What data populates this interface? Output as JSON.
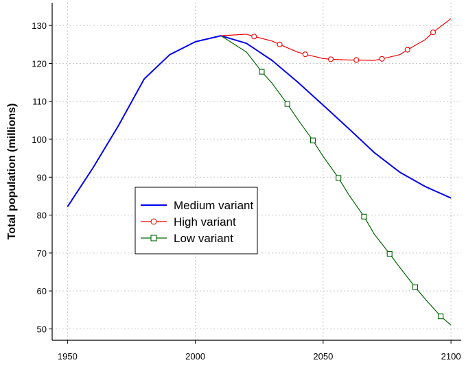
{
  "chart_data": {
    "type": "line",
    "title": "",
    "xlabel": "",
    "ylabel": "Total population (millions)",
    "xlim": [
      1944,
      2104
    ],
    "ylim": [
      47,
      136
    ],
    "xticks": [
      1950,
      2000,
      2050,
      2100
    ],
    "yticks": [
      50,
      60,
      70,
      80,
      90,
      100,
      110,
      120,
      130
    ],
    "grid": true,
    "legend": "center-left",
    "series": [
      {
        "name": "Medium variant",
        "color": "#0000ee",
        "marker": "none",
        "x": [
          1950,
          1960,
          1970,
          1980,
          1990,
          2000,
          2010,
          2020,
          2030,
          2040,
          2050,
          2060,
          2070,
          2080,
          2090,
          2100
        ],
        "y": [
          82.2,
          92.5,
          103.7,
          115.9,
          122.3,
          125.7,
          127.3,
          125.3,
          120.8,
          115.1,
          109.0,
          102.8,
          96.5,
          91.3,
          87.5,
          84.5
        ]
      },
      {
        "name": "High variant",
        "color": "#ee0000",
        "marker": "circle",
        "x": [
          2010,
          2020,
          2023,
          2030,
          2033,
          2040,
          2043,
          2050,
          2053,
          2060,
          2063,
          2070,
          2073,
          2080,
          2083,
          2090,
          2093,
          2100
        ],
        "y": [
          127.3,
          127.7,
          127.1,
          125.9,
          125.0,
          123.0,
          122.4,
          121.3,
          121.1,
          120.9,
          120.9,
          120.8,
          121.2,
          122.3,
          123.6,
          126.3,
          128.2,
          131.8
        ],
        "marker_x": [
          2023,
          2033,
          2043,
          2053,
          2063,
          2073,
          2083,
          2093
        ],
        "marker_y": [
          127.1,
          125.0,
          122.4,
          121.1,
          120.9,
          121.2,
          123.6,
          128.2
        ]
      },
      {
        "name": "Low variant",
        "color": "#006400",
        "marker": "square",
        "x": [
          2010,
          2020,
          2026,
          2030,
          2036,
          2040,
          2046,
          2050,
          2056,
          2060,
          2066,
          2070,
          2076,
          2080,
          2086,
          2090,
          2096,
          2100
        ],
        "y": [
          127.3,
          123.0,
          117.8,
          114.8,
          109.3,
          105.3,
          99.7,
          95.5,
          89.8,
          85.4,
          79.6,
          75.0,
          69.8,
          66.2,
          61.0,
          57.8,
          53.3,
          51.0
        ],
        "marker_x": [
          2026,
          2036,
          2046,
          2056,
          2066,
          2076,
          2086,
          2096
        ],
        "marker_y": [
          117.8,
          109.3,
          99.7,
          89.8,
          79.6,
          69.8,
          61.0,
          53.3
        ]
      }
    ]
  }
}
